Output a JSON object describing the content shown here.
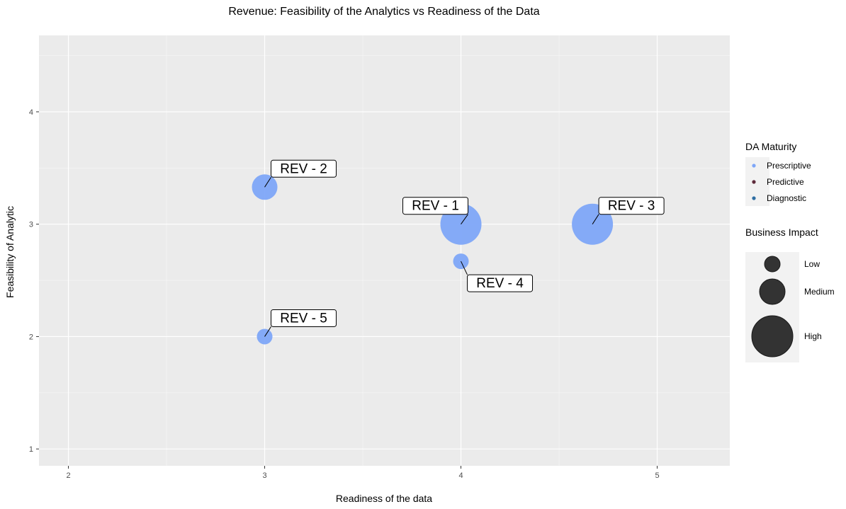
{
  "chart_data": {
    "type": "scatter",
    "title": "Revenue: Feasibility of the Analytics vs Readiness of the Data",
    "xlabel": "Readiness of the data",
    "ylabel": "Feasibility of Analytic",
    "xlim": [
      1.85,
      5.37
    ],
    "ylim": [
      0.85,
      4.68
    ],
    "x_ticks": [
      2,
      3,
      4,
      5
    ],
    "y_ticks": [
      1,
      2,
      3,
      4
    ],
    "grid": true,
    "background": "#ebebeb",
    "points": [
      {
        "label": "REV - 1",
        "x": 4.0,
        "y": 3.0,
        "size": "High",
        "maturity": "Prescriptive"
      },
      {
        "label": "REV - 2",
        "x": 3.0,
        "y": 3.33,
        "size": "Medium",
        "maturity": "Prescriptive"
      },
      {
        "label": "REV - 3",
        "x": 4.67,
        "y": 3.0,
        "size": "High",
        "maturity": "Prescriptive"
      },
      {
        "label": "REV - 4",
        "x": 4.0,
        "y": 2.67,
        "size": "Low",
        "maturity": "Prescriptive"
      },
      {
        "label": "REV - 5",
        "x": 3.0,
        "y": 2.0,
        "size": "Low",
        "maturity": "Prescriptive"
      }
    ],
    "legend_color": {
      "title": "DA Maturity",
      "placement": "right",
      "entries": [
        {
          "name": "Prescriptive",
          "color": "#7ea6f8"
        },
        {
          "name": "Predictive",
          "color": "#5e2a3a"
        },
        {
          "name": "Diagnostic",
          "color": "#2f6ea3"
        }
      ]
    },
    "legend_size": {
      "title": "Business Impact",
      "placement": "right",
      "entries": [
        {
          "name": "Low"
        },
        {
          "name": "Medium"
        },
        {
          "name": "High"
        }
      ]
    }
  }
}
